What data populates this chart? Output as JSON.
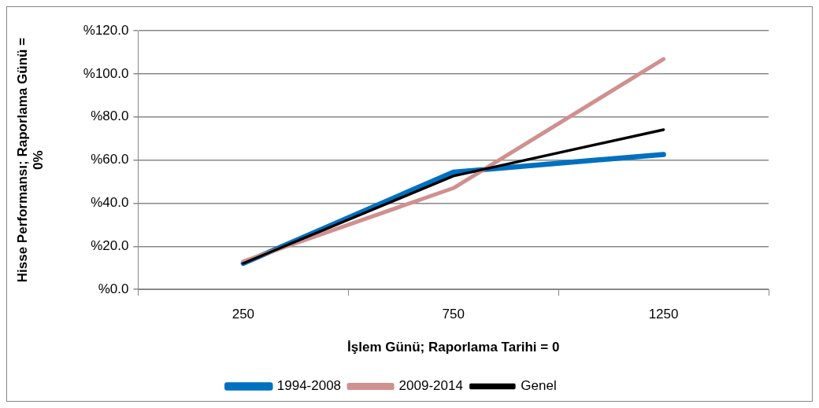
{
  "chart_data": {
    "type": "line",
    "xlabel": "İşlem Günü; Raporlama Tarihi = 0",
    "ylabel": "Hisse Performansı; Raporlama Günü = 0%",
    "categories": [
      "250",
      "750",
      "1250"
    ],
    "series": [
      {
        "name": "1994-2008",
        "color": "#0070c0",
        "values": [
          12.1,
          54.4,
          62.6
        ]
      },
      {
        "name": "2009-2014",
        "color": "#d09090",
        "values": [
          13.0,
          47.0,
          106.8
        ]
      },
      {
        "name": "Genel",
        "color": "#000000",
        "values": [
          12.1,
          52.6,
          74.1
        ]
      }
    ],
    "ylim": [
      0,
      120
    ],
    "yticks": [
      {
        "value": 0,
        "label": "%0.0"
      },
      {
        "value": 20,
        "label": "%20.0"
      },
      {
        "value": 40,
        "label": "%40.0"
      },
      {
        "value": 60,
        "label": "%60.0"
      },
      {
        "value": 80,
        "label": "%80.0"
      },
      {
        "value": 100,
        "label": "%100.0"
      },
      {
        "value": 120,
        "label": "%120.0"
      }
    ],
    "grid": "y",
    "legend": "bottom",
    "marker": "none",
    "line_style": "solid"
  }
}
